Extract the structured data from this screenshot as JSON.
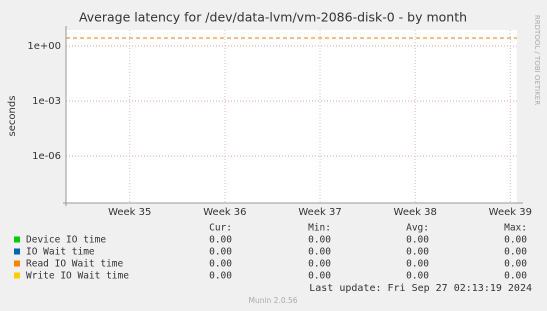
{
  "chart_data": {
    "type": "line",
    "title": "Average latency for /dev/data-lvm/vm-2086-disk-0 - by month",
    "y_label": "seconds",
    "side_label": "RRDTOOL / TOBI OETIKER",
    "log_scale": true,
    "grid": true,
    "ylim": [
      2.8e-09,
      7.4
    ],
    "yticks": [
      {
        "value": 1,
        "label": "1e+00"
      },
      {
        "value": 0.001,
        "label": "1e-03"
      },
      {
        "value": 1e-06,
        "label": "1e-06"
      }
    ],
    "xlim": [
      34.33,
      39.07
    ],
    "xticks": [
      {
        "value": 35,
        "label": "Week 35"
      },
      {
        "value": 36,
        "label": "Week 36"
      },
      {
        "value": 37,
        "label": "Week 37"
      },
      {
        "value": 38,
        "label": "Week 38"
      },
      {
        "value": 39,
        "label": "Week 39"
      }
    ],
    "reference_line": {
      "value": 2.7,
      "color": "#e08000"
    },
    "legend_headers": [
      "Cur:",
      "Min:",
      "Avg:",
      "Max:"
    ],
    "series": [
      {
        "name": "Device IO time",
        "color": "#00cc00",
        "stats": [
          "0.00",
          "0.00",
          "0.00",
          "0.00"
        ]
      },
      {
        "name": "IO Wait time",
        "color": "#0066b3",
        "stats": [
          "0.00",
          "0.00",
          "0.00",
          "0.00"
        ]
      },
      {
        "name": "Read IO Wait time",
        "color": "#ff8000",
        "stats": [
          "0.00",
          "0.00",
          "0.00",
          "0.00"
        ]
      },
      {
        "name": "Write IO Wait time",
        "color": "#ffcc00",
        "stats": [
          "0.00",
          "0.00",
          "0.00",
          "0.00"
        ]
      }
    ],
    "last_update": "Last update: Fri Sep 27 02:13:19 2024",
    "generator": "Munin 2.0.56"
  }
}
